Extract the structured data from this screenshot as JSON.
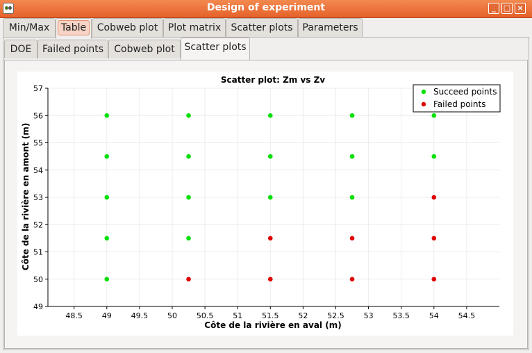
{
  "window": {
    "title": "Design of experiment",
    "minimize_glyph": "_",
    "maximize_glyph": "□",
    "close_glyph": "×"
  },
  "tabs_top": [
    "Min/Max",
    "Table",
    "Cobweb plot",
    "Plot matrix",
    "Scatter plots",
    "Parameters"
  ],
  "tabs_top_selected": "Table",
  "tabs_inner": [
    "DOE",
    "Failed points",
    "Cobweb plot",
    "Scatter plots"
  ],
  "tabs_inner_selected": "Scatter plots",
  "chart_data": {
    "type": "scatter",
    "title": "Scatter plot: Zm vs Zv",
    "xlabel": "Côte de la rivière en aval (m)",
    "ylabel": "Côte de la rivière en amont (m)",
    "xlim": [
      48.1,
      55
    ],
    "ylim": [
      49,
      57
    ],
    "xticks": [
      48.5,
      49,
      49.5,
      50,
      50.5,
      51,
      51.5,
      52,
      52.5,
      53,
      53.5,
      54,
      54.5
    ],
    "yticks": [
      49,
      50,
      51,
      52,
      53,
      54,
      55,
      56,
      57
    ],
    "grid": true,
    "legend_position": "top-right",
    "series": [
      {
        "name": "Succeed points",
        "color": "#00e000",
        "points": [
          [
            49,
            56
          ],
          [
            50.25,
            56
          ],
          [
            51.5,
            56
          ],
          [
            52.75,
            56
          ],
          [
            54,
            56
          ],
          [
            49,
            54.5
          ],
          [
            50.25,
            54.5
          ],
          [
            51.5,
            54.5
          ],
          [
            52.75,
            54.5
          ],
          [
            54,
            54.5
          ],
          [
            49,
            53
          ],
          [
            50.25,
            53
          ],
          [
            51.5,
            53
          ],
          [
            52.75,
            53
          ],
          [
            49,
            51.5
          ],
          [
            50.25,
            51.5
          ],
          [
            49,
            50
          ]
        ]
      },
      {
        "name": "Failed points",
        "color": "#e00000",
        "points": [
          [
            54,
            53
          ],
          [
            51.5,
            51.5
          ],
          [
            52.75,
            51.5
          ],
          [
            54,
            51.5
          ],
          [
            50.25,
            50
          ],
          [
            51.5,
            50
          ],
          [
            52.75,
            50
          ],
          [
            54,
            50
          ]
        ]
      }
    ]
  }
}
